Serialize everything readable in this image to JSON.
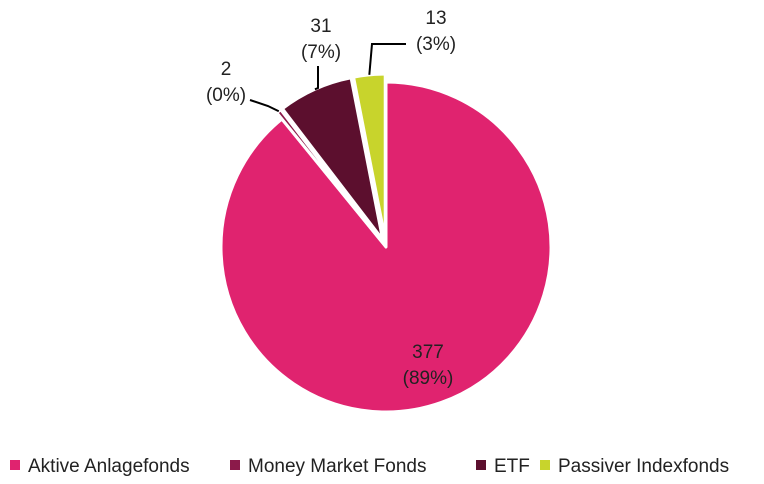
{
  "chart_data": {
    "type": "pie",
    "title": "",
    "start": "top, clockwise",
    "slices": [
      {
        "name": "Aktive Anlagefonds",
        "value": 377,
        "percent_label": "(89%)",
        "color": "#e0236f",
        "exploded": false
      },
      {
        "name": "Money Market Fonds",
        "value": 2,
        "percent_label": "(0%)",
        "color": "#8b1a4a",
        "exploded": true
      },
      {
        "name": "ETF",
        "value": 31,
        "percent_label": "(7%)",
        "color": "#5c0f2e",
        "exploded": true
      },
      {
        "name": "Passiver Indexfonds",
        "value": 13,
        "percent_label": "(3%)",
        "color": "#c8d42c",
        "exploded": true
      }
    ],
    "legend": {
      "position": "bottom"
    }
  }
}
